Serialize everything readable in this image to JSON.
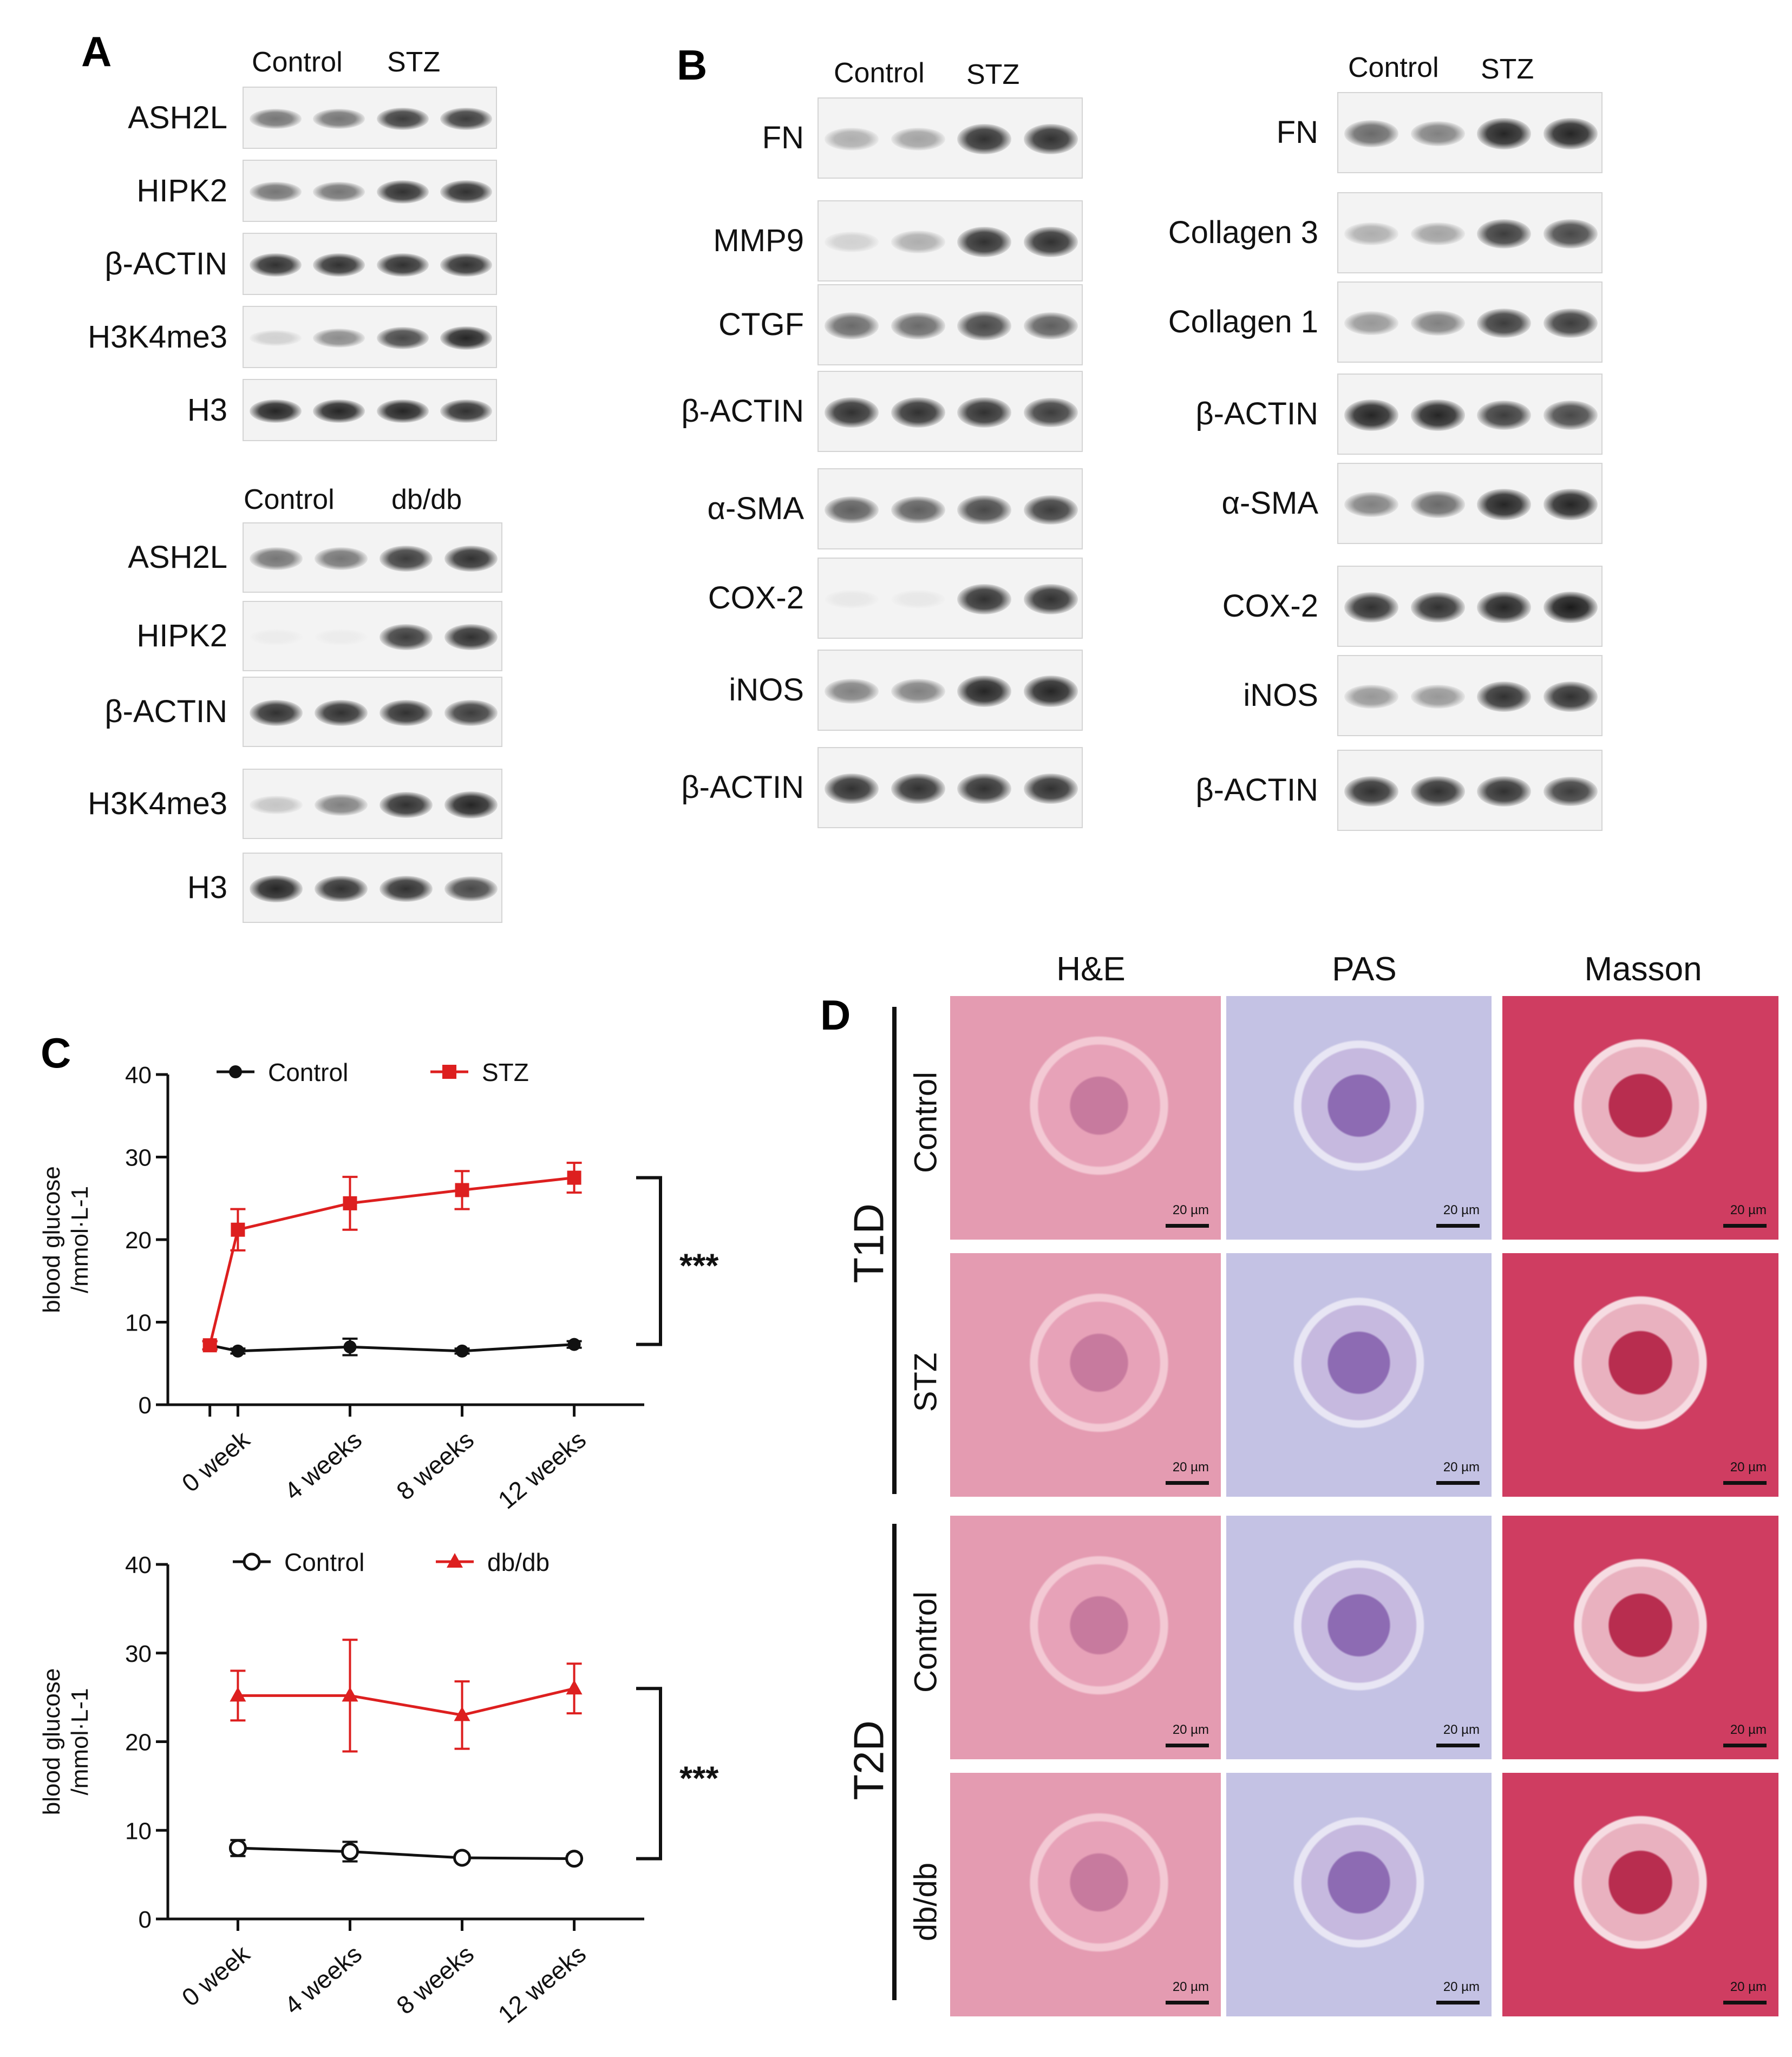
{
  "panels": {
    "A": {
      "label": "A",
      "stz_block": {
        "groups": [
          "Control",
          "STZ"
        ],
        "rows": [
          {
            "label": "ASH2L",
            "levels": [
              0.55,
              0.55,
              0.8,
              0.8
            ]
          },
          {
            "label": "HIPK2",
            "levels": [
              0.55,
              0.55,
              0.85,
              0.85
            ]
          },
          {
            "label": "β-ACTIN",
            "levels": [
              0.85,
              0.85,
              0.85,
              0.85
            ]
          },
          {
            "label": "H3K4me3",
            "levels": [
              0.15,
              0.45,
              0.75,
              0.9
            ]
          },
          {
            "label": "H3",
            "levels": [
              0.9,
              0.9,
              0.9,
              0.85
            ]
          }
        ]
      },
      "dbdb_block": {
        "groups": [
          "Control",
          "db/db"
        ],
        "rows": [
          {
            "label": "ASH2L",
            "levels": [
              0.55,
              0.55,
              0.8,
              0.85
            ]
          },
          {
            "label": "HIPK2",
            "levels": [
              0.02,
              0.02,
              0.8,
              0.85
            ]
          },
          {
            "label": "β-ACTIN",
            "levels": [
              0.85,
              0.85,
              0.85,
              0.8
            ]
          },
          {
            "label": "H3K4me3",
            "levels": [
              0.2,
              0.5,
              0.85,
              0.9
            ]
          },
          {
            "label": "H3",
            "levels": [
              0.9,
              0.85,
              0.85,
              0.75
            ]
          }
        ]
      }
    },
    "B": {
      "label": "B",
      "left_block": {
        "groups": [
          "Control",
          "STZ"
        ],
        "rows": [
          {
            "label": "FN",
            "levels": [
              0.3,
              0.35,
              0.85,
              0.85
            ]
          },
          {
            "label": "MMP9",
            "levels": [
              0.15,
              0.3,
              0.85,
              0.85
            ]
          },
          {
            "label": "CTGF",
            "levels": [
              0.6,
              0.6,
              0.75,
              0.65
            ]
          },
          {
            "label": "β-ACTIN",
            "levels": [
              0.85,
              0.85,
              0.85,
              0.8
            ]
          },
          {
            "label": "α-SMA",
            "levels": [
              0.65,
              0.65,
              0.75,
              0.8
            ]
          },
          {
            "label": "COX-2",
            "levels": [
              0.05,
              0.05,
              0.85,
              0.85
            ]
          },
          {
            "label": "iNOS",
            "levels": [
              0.5,
              0.5,
              0.9,
              0.9
            ]
          },
          {
            "label": "β-ACTIN",
            "levels": [
              0.85,
              0.85,
              0.85,
              0.85
            ]
          }
        ]
      },
      "right_block": {
        "groups": [
          "Control",
          "STZ"
        ],
        "rows": [
          {
            "label": "FN",
            "levels": [
              0.6,
              0.5,
              0.9,
              0.9
            ]
          },
          {
            "label": "Collagen 3",
            "levels": [
              0.3,
              0.35,
              0.8,
              0.75
            ]
          },
          {
            "label": "Collagen 1",
            "levels": [
              0.4,
              0.5,
              0.8,
              0.8
            ]
          },
          {
            "label": "β-ACTIN",
            "levels": [
              0.9,
              0.9,
              0.8,
              0.75
            ]
          },
          {
            "label": "α-SMA",
            "levels": [
              0.5,
              0.6,
              0.9,
              0.9
            ]
          },
          {
            "label": "COX-2",
            "levels": [
              0.85,
              0.85,
              0.9,
              0.95
            ]
          },
          {
            "label": "iNOS",
            "levels": [
              0.4,
              0.4,
              0.85,
              0.85
            ]
          },
          {
            "label": "β-ACTIN",
            "levels": [
              0.85,
              0.85,
              0.85,
              0.8
            ]
          }
        ]
      }
    },
    "C": {
      "label": "C",
      "significance": "***"
    },
    "D": {
      "label": "D",
      "columns": [
        "H&E",
        "PAS",
        "Masson"
      ],
      "groups": [
        {
          "name": "T1D",
          "rows": [
            "Control",
            "STZ"
          ]
        },
        {
          "name": "T2D",
          "rows": [
            "Control",
            "db/db"
          ]
        }
      ],
      "scale_bar": "20 µm",
      "colors": {
        "he": "#e9a3b6",
        "pas": "#c9c7e6",
        "masson": "#d84a6a"
      }
    }
  },
  "chart_data": [
    {
      "type": "line",
      "ylabel": "blood glucose /mmol·L-1",
      "ylim": [
        0,
        40
      ],
      "yticks": [
        0,
        10,
        20,
        30,
        40
      ],
      "categories": [
        "0 week",
        "4 weeks",
        "8 weeks",
        "12 weeks"
      ],
      "x": [
        -1,
        0,
        4,
        8,
        12
      ],
      "legend_position": "top",
      "series": [
        {
          "name": "Control",
          "color": "#111111",
          "marker": "filled-circle",
          "values": [
            7.2,
            6.5,
            7.0,
            6.5,
            7.3
          ],
          "errors": [
            0.5,
            0.3,
            1.0,
            0.3,
            0.4
          ]
        },
        {
          "name": "STZ",
          "color": "#dd1f1f",
          "marker": "filled-square",
          "values": [
            7.2,
            21.2,
            24.4,
            26.0,
            27.5
          ],
          "errors": [
            0.5,
            2.5,
            3.2,
            2.3,
            1.8
          ]
        }
      ],
      "significance": "***"
    },
    {
      "type": "line",
      "ylabel": "blood glucose /mmol·L-1",
      "ylim": [
        0,
        40
      ],
      "yticks": [
        0,
        10,
        20,
        30,
        40
      ],
      "categories": [
        "0 week",
        "4 weeks",
        "8 weeks",
        "12 weeks"
      ],
      "x": [
        0,
        4,
        8,
        12
      ],
      "legend_position": "top",
      "series": [
        {
          "name": "Control",
          "color": "#111111",
          "marker": "open-circle",
          "values": [
            8.0,
            7.6,
            6.9,
            6.8
          ],
          "errors": [
            0.9,
            1.1,
            0.3,
            0.5
          ]
        },
        {
          "name": "db/db",
          "color": "#dd1f1f",
          "marker": "filled-triangle",
          "values": [
            25.2,
            25.2,
            23.0,
            26.0
          ],
          "errors": [
            2.8,
            6.3,
            3.8,
            2.8
          ]
        }
      ],
      "significance": "***"
    }
  ]
}
